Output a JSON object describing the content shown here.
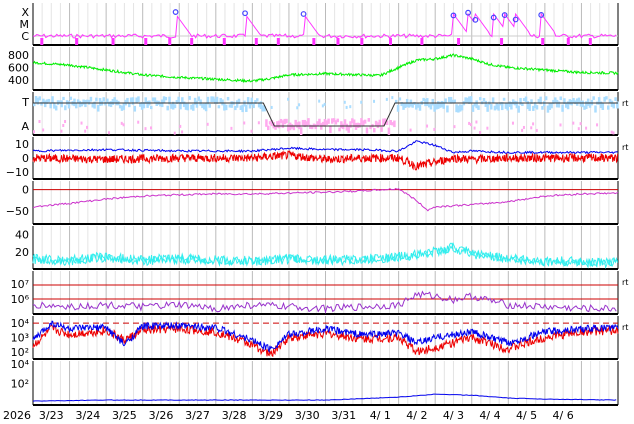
{
  "chart_data": {
    "type": "line",
    "year_label": "2026",
    "x": [
      "3/23",
      "3/24",
      "3/25",
      "3/26",
      "3/27",
      "3/28",
      "3/29",
      "3/30",
      "3/31",
      "4/ 1",
      "4/ 2",
      "4/ 3",
      "4/ 4",
      "4/ 5",
      "4/ 6"
    ],
    "panels": [
      {
        "id": "xray",
        "tick_labels": [
          "X",
          "M",
          "C"
        ],
        "colors": {
          "flux": "#ff33ff",
          "flare_marker": "#4444ff"
        },
        "flare_days": [
          3.9,
          5.8,
          7.4,
          11.5,
          11.9,
          12.1,
          12.6,
          12.9,
          13.2,
          13.9
        ]
      },
      {
        "id": "solar_wind_speed",
        "tick_labels": [
          "800",
          "600",
          "400"
        ],
        "ylim": [
          300,
          900
        ],
        "colors": {
          "speed": "#00ee00"
        },
        "x_days": [
          0,
          1,
          2,
          3,
          4,
          5,
          6,
          6.5,
          7,
          8,
          8.5,
          9,
          9.5,
          10,
          10.5,
          11,
          11.5,
          12,
          12.5,
          13,
          14,
          15,
          16
        ],
        "values": [
          680,
          640,
          560,
          480,
          440,
          410,
          380,
          420,
          480,
          500,
          490,
          480,
          470,
          600,
          720,
          740,
          800,
          740,
          650,
          600,
          560,
          520,
          510
        ]
      },
      {
        "id": "imf_sector",
        "tick_labels": [
          "T",
          "A"
        ],
        "right_label": "rt",
        "colors": {
          "toward": "#aaddff",
          "away": "#ffaaee",
          "line": "#333333"
        }
      },
      {
        "id": "imf_b",
        "tick_labels": [
          "10",
          "0",
          "−10"
        ],
        "right_label": "rt",
        "ylim": [
          -15,
          15
        ],
        "colors": {
          "bt": "#0000ee",
          "bz": "#ee0000"
        },
        "x_days": [
          0,
          2,
          4,
          6,
          7,
          8,
          9,
          10,
          10.5,
          11,
          11.5,
          12,
          13,
          14,
          16
        ],
        "bt": [
          5,
          6,
          5,
          5,
          7,
          6,
          6,
          5,
          12,
          9,
          4,
          5,
          4,
          4,
          4
        ],
        "bz": [
          0,
          -1,
          0,
          0,
          2,
          -1,
          0,
          0,
          -6,
          -3,
          0,
          -1,
          0,
          0,
          0
        ]
      },
      {
        "id": "dst",
        "tick_labels": [
          "0",
          "−50"
        ],
        "ylim": [
          -80,
          20
        ],
        "colors": {
          "dst": "#cc33cc",
          "ref": "#cc0000"
        },
        "x_days": [
          0,
          1,
          2,
          3,
          4,
          5,
          6,
          7,
          8,
          9,
          10,
          10.4,
          10.8,
          11,
          12,
          13,
          14,
          15,
          16
        ],
        "values": [
          -40,
          -32,
          -22,
          -15,
          -12,
          -10,
          -10,
          -8,
          -6,
          -3,
          2,
          -20,
          -48,
          -40,
          -35,
          -28,
          -15,
          -10,
          -8
        ]
      },
      {
        "id": "kp_like",
        "tick_labels": [
          "40",
          "20"
        ],
        "ylim": [
          0,
          50
        ],
        "colors": {
          "line": "#33eeee"
        },
        "x_days": [
          0,
          1,
          2,
          3,
          4,
          5,
          6,
          7,
          8,
          9,
          10,
          11,
          11.5,
          12,
          13,
          14,
          15,
          16
        ],
        "values": [
          12,
          10,
          14,
          10,
          12,
          10,
          9,
          12,
          10,
          11,
          14,
          20,
          25,
          18,
          12,
          9,
          8,
          7
        ]
      },
      {
        "id": "proton",
        "tick_labels": [
          "10⁷",
          "10⁶"
        ],
        "right_label": "rt",
        "colors": {
          "line": "#9933cc",
          "ref": "#cc0000"
        },
        "x_days": [
          0,
          1,
          2,
          3,
          4,
          5,
          6,
          7,
          8,
          9,
          10,
          10.5,
          11,
          11.5,
          12,
          13,
          14,
          15,
          16
        ],
        "values": [
          5.5,
          5.4,
          5.5,
          5.4,
          5.5,
          5.3,
          5.5,
          5.4,
          5.3,
          5.4,
          5.5,
          6.1,
          6.0,
          5.8,
          6.0,
          5.5,
          5.4,
          5.3,
          5.3
        ]
      },
      {
        "id": "electron",
        "tick_labels": [
          "10⁴",
          "10³",
          "10²"
        ],
        "right_label": "rt",
        "colors": {
          "ch1": "#0000ee",
          "ch2": "#ee0000",
          "ref": "#cc0000"
        },
        "x_days": [
          0,
          0.5,
          1,
          2,
          2.5,
          3,
          4,
          5,
          6,
          6.5,
          7,
          8,
          9,
          10,
          10.5,
          11,
          12,
          13,
          14,
          15,
          16
        ],
        "ch1": [
          2.8,
          4.0,
          3.6,
          3.7,
          2.5,
          3.8,
          3.8,
          3.7,
          2.8,
          2.2,
          3.2,
          3.6,
          3.2,
          3.3,
          2.6,
          3.0,
          3.4,
          2.6,
          3.4,
          3.6,
          3.7
        ],
        "ch2": [
          2.4,
          3.6,
          3.2,
          3.5,
          2.8,
          3.5,
          3.6,
          3.4,
          2.5,
          1.8,
          3.0,
          3.3,
          2.9,
          3.0,
          2.0,
          2.3,
          3.0,
          2.2,
          3.0,
          3.4,
          3.5
        ]
      },
      {
        "id": "neutron",
        "tick_labels": [
          "10⁴",
          "10²"
        ],
        "colors": {
          "line": "#0000ee"
        },
        "x_days": [
          0,
          2,
          4,
          6,
          8,
          10,
          11,
          12,
          13,
          14,
          16
        ],
        "values": [
          0.2,
          0.3,
          0.3,
          0.3,
          0.3,
          0.6,
          0.9,
          0.8,
          0.5,
          0.4,
          0.3
        ]
      }
    ]
  }
}
